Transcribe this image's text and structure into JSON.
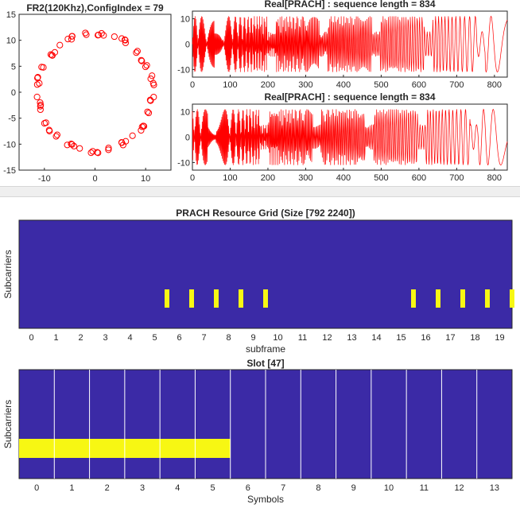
{
  "chart_data": [
    {
      "type": "scatter",
      "title": "FR2(120Khz),ConfigIndex = 79",
      "xlabel": "",
      "ylabel": "",
      "xlim": [
        -15,
        15
      ],
      "ylim": [
        -15,
        15
      ],
      "xticks": [
        -10,
        0,
        10
      ],
      "yticks": [
        15,
        10,
        5,
        0,
        -5,
        -10,
        -15
      ],
      "marker": "circle-open",
      "color": "#ff0000",
      "radius": 11.7,
      "n_points": 72,
      "points_description": "PRACH sequence samples plotted in the complex plane, lying on a circle of radius ~11.7"
    },
    {
      "type": "line",
      "title": "Real[PRACH] : sequence length = 834",
      "xlim": [
        0,
        834
      ],
      "ylim": [
        -13,
        13
      ],
      "xticks": [
        0,
        100,
        200,
        300,
        400,
        500,
        600,
        700,
        800
      ],
      "yticks": [
        10,
        0,
        -10
      ],
      "color": "#ff0000",
      "amplitude": 11
    },
    {
      "type": "line",
      "title": "Real[PRACH] : sequence length = 834",
      "xlim": [
        0,
        834
      ],
      "ylim": [
        -13,
        13
      ],
      "xticks": [
        0,
        100,
        200,
        300,
        400,
        500,
        600,
        700,
        800
      ],
      "yticks": [
        10,
        0,
        -10
      ],
      "color": "#ff0000",
      "amplitude": 11
    },
    {
      "type": "heatmap",
      "title": "PRACH Resource Grid (Size [792 2240])",
      "xlabel": "subframe",
      "ylabel": "Subcarriers",
      "xticks": [
        "0",
        "1",
        "2",
        "3",
        "4",
        "5",
        "6",
        "7",
        "8",
        "9",
        "10",
        "11",
        "12",
        "13",
        "14",
        "15",
        "16",
        "17",
        "18",
        "19"
      ],
      "xlim": [
        -0.5,
        19.5
      ],
      "background_color": "#3b2aa6",
      "active_color": "#f7f713",
      "active_positions": [
        5.5,
        6.5,
        7.5,
        8.5,
        9.5,
        15.5,
        16.5,
        17.5,
        18.5,
        19.5
      ]
    },
    {
      "type": "heatmap",
      "title": "Slot [47]",
      "xlabel": "Symbols",
      "ylabel": "Subcarriers",
      "xticks": [
        "0",
        "1",
        "2",
        "3",
        "4",
        "5",
        "6",
        "7",
        "8",
        "9",
        "10",
        "11",
        "12",
        "13"
      ],
      "xlim": [
        -0.5,
        13.5
      ],
      "background_color": "#3b2aa6",
      "active_color": "#f7f713",
      "active_symbols": [
        0,
        5
      ],
      "grid_line_color": "#ffffff"
    }
  ]
}
